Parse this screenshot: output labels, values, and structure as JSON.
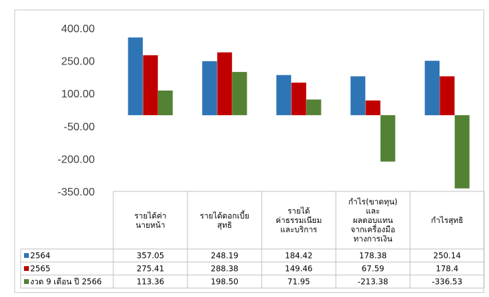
{
  "chart_data": {
    "type": "bar",
    "categories": [
      [
        "รายได้ค่า",
        "นายหน้า"
      ],
      [
        "รายได้ดอกเบี้ย",
        "สุทธิ"
      ],
      [
        "รายได้",
        "ค่าธรรมเนียม",
        "และบริการ"
      ],
      [
        "กำไร(ขาดทุน)",
        "และ",
        "ผลตอบแทน",
        "จากเครื่องมือ",
        "ทางการเงิน"
      ],
      [
        "กำไรสุทธิ"
      ]
    ],
    "series": [
      {
        "name": "2564",
        "color": "#2e75b6",
        "values": [
          357.05,
          248.19,
          184.42,
          178.38,
          250.14
        ],
        "labels": [
          "357.05",
          "248.19",
          "184.42",
          "178.38",
          "250.14"
        ]
      },
      {
        "name": "2565",
        "color": "#c00000",
        "values": [
          275.41,
          288.38,
          149.46,
          67.59,
          178.4
        ],
        "labels": [
          "275.41",
          "288.38",
          "149.46",
          "67.59",
          "178.4"
        ]
      },
      {
        "name": "งวด 9 เดือน ปี 2566",
        "color": "#548235",
        "values": [
          113.36,
          198.5,
          71.95,
          -213.38,
          -336.53
        ],
        "labels": [
          "113.36",
          "198.50",
          "71.95",
          "-213.38",
          "-336.53"
        ]
      }
    ],
    "yticks": [
      "400.00",
      "250.00",
      "100.00",
      "-50.00",
      "-200.00",
      "-350.00"
    ],
    "ylim": [
      -350,
      400
    ],
    "grid": false,
    "legend": "data-table"
  }
}
